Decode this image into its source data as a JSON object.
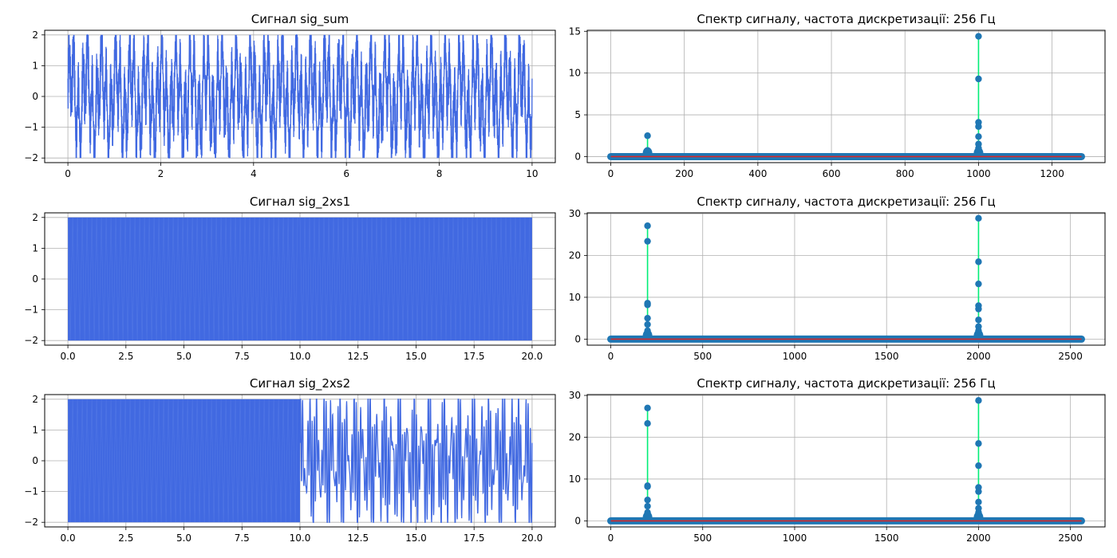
{
  "chart_data": [
    {
      "type": "line",
      "title": "Сигнал sig_sum",
      "xlim": [
        -0.5,
        10.5
      ],
      "ylim": [
        -2.15,
        2.15
      ],
      "xticks": [
        0,
        2,
        4,
        6,
        8,
        10
      ],
      "xtick_labels": [
        "0",
        "2",
        "4",
        "6",
        "8",
        "10"
      ],
      "yticks": [
        -2,
        -1,
        0,
        1,
        2
      ],
      "ytick_labels": [
        "−2",
        "−1",
        "0",
        "1",
        "2"
      ],
      "grid": true,
      "color": "#4169e1",
      "series": [
        {
          "x_range": [
            0,
            10
          ],
          "amplitude": 2.0,
          "pattern": "dense"
        }
      ]
    },
    {
      "type": "stem",
      "title": "Спектр сигналу, частота дискретизації: 256 Гц",
      "xlim": [
        -64,
        1344
      ],
      "ylim": [
        -0.72,
        15.12
      ],
      "xticks": [
        0,
        200,
        400,
        600,
        800,
        1000,
        1200
      ],
      "xtick_labels": [
        "0",
        "200",
        "400",
        "600",
        "800",
        "1000",
        "1200"
      ],
      "yticks": [
        0,
        5,
        10,
        15
      ],
      "ytick_labels": [
        "0",
        "5",
        "10",
        "15"
      ],
      "grid": true,
      "stem_color": "#00ee77",
      "marker_color": "#1f77b4",
      "baseline_color": "#d62728",
      "baseline_range": [
        0,
        1280
      ],
      "peaks": [
        {
          "x": 100,
          "y": [
            2.5
          ]
        },
        {
          "x": 1000,
          "y": [
            14.4,
            9.3,
            4.1,
            3.6,
            2.4,
            1.5,
            1.0
          ]
        }
      ]
    },
    {
      "type": "line",
      "title": "Сигнал sig_2xs1",
      "xlim": [
        -1.0,
        21.0
      ],
      "ylim": [
        -2.15,
        2.15
      ],
      "xticks": [
        0,
        2.5,
        5,
        7.5,
        10,
        12.5,
        15,
        17.5,
        20
      ],
      "xtick_labels": [
        "0.0",
        "2.5",
        "5.0",
        "7.5",
        "10.0",
        "12.5",
        "15.0",
        "17.5",
        "20.0"
      ],
      "yticks": [
        -2,
        -1,
        0,
        1,
        2
      ],
      "ytick_labels": [
        "−2",
        "−1",
        "0",
        "1",
        "2"
      ],
      "grid": true,
      "color": "#4169e1",
      "series": [
        {
          "x_range": [
            0,
            10
          ],
          "amplitude": 2.0,
          "pattern": "filled"
        },
        {
          "x_range": [
            10,
            20
          ],
          "amplitude": 2.0,
          "pattern": "filled"
        }
      ]
    },
    {
      "type": "stem",
      "title": "Спектр сигналу, частота дискретизації: 256 Гц",
      "xlim": [
        -128,
        2688
      ],
      "ylim": [
        -1.45,
        30.2
      ],
      "xticks": [
        0,
        500,
        1000,
        1500,
        2000,
        2500
      ],
      "xtick_labels": [
        "0",
        "500",
        "1000",
        "1500",
        "2000",
        "2500"
      ],
      "yticks": [
        0,
        10,
        20,
        30
      ],
      "ytick_labels": [
        "0",
        "10",
        "20",
        "30"
      ],
      "grid": true,
      "stem_color": "#00ee77",
      "marker_color": "#1f77b4",
      "baseline_color": "#d62728",
      "baseline_range": [
        0,
        2560
      ],
      "peaks": [
        {
          "x": 200,
          "y": [
            27.1,
            23.4,
            8.6,
            8.2,
            5.0,
            3.5,
            2.0
          ]
        },
        {
          "x": 2000,
          "y": [
            28.9,
            18.5,
            13.2,
            8.0,
            7.2,
            4.6,
            3.0,
            2.0
          ]
        }
      ]
    },
    {
      "type": "line",
      "title": "Сигнал sig_2xs2",
      "xlim": [
        -1.0,
        21.0
      ],
      "ylim": [
        -2.15,
        2.15
      ],
      "xticks": [
        0,
        2.5,
        5,
        7.5,
        10,
        12.5,
        15,
        17.5,
        20
      ],
      "xtick_labels": [
        "0.0",
        "2.5",
        "5.0",
        "7.5",
        "10.0",
        "12.5",
        "15.0",
        "17.5",
        "20.0"
      ],
      "yticks": [
        -2,
        -1,
        0,
        1,
        2
      ],
      "ytick_labels": [
        "−2",
        "−1",
        "0",
        "1",
        "2"
      ],
      "grid": true,
      "color": "#4169e1",
      "series": [
        {
          "x_range": [
            0,
            10
          ],
          "amplitude": 2.0,
          "pattern": "filled"
        },
        {
          "x_range": [
            10,
            20
          ],
          "amplitude": 2.0,
          "pattern": "dense"
        }
      ]
    },
    {
      "type": "stem",
      "title": "Спектр сигналу, частота дискретизації: 256 Гц",
      "xlim": [
        -128,
        2688
      ],
      "ylim": [
        -1.45,
        30.2
      ],
      "xticks": [
        0,
        500,
        1000,
        1500,
        2000,
        2500
      ],
      "xtick_labels": [
        "0",
        "500",
        "1000",
        "1500",
        "2000",
        "2500"
      ],
      "yticks": [
        0,
        10,
        20,
        30
      ],
      "ytick_labels": [
        "0",
        "10",
        "20",
        "30"
      ],
      "grid": true,
      "stem_color": "#00ee77",
      "marker_color": "#1f77b4",
      "baseline_color": "#d62728",
      "baseline_range": [
        0,
        2560
      ],
      "peaks": [
        {
          "x": 200,
          "y": [
            27.0,
            23.3,
            8.4,
            8.2,
            5.0,
            3.5,
            2.0
          ]
        },
        {
          "x": 2000,
          "y": [
            28.8,
            18.5,
            13.2,
            8.0,
            7.0,
            4.5,
            3.0,
            2.0
          ]
        }
      ]
    }
  ]
}
